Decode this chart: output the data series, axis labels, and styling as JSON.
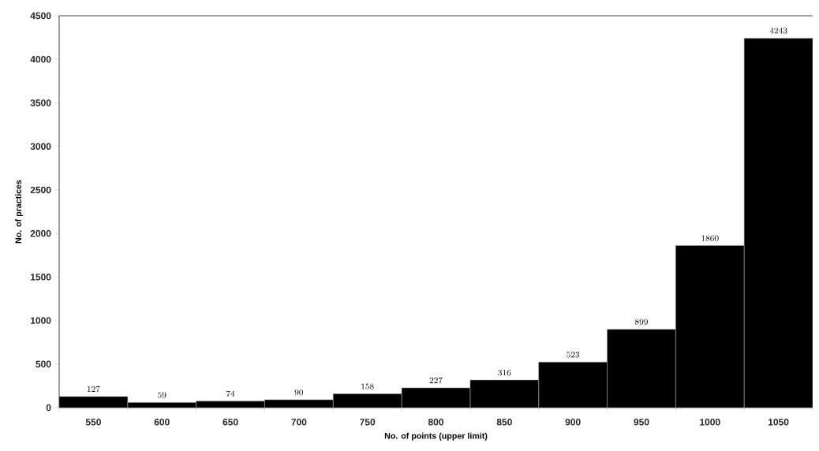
{
  "chart_data": {
    "type": "bar",
    "xlabel": "No. of points (upper limit)",
    "ylabel": "No. of practices",
    "categories": [
      "550",
      "600",
      "650",
      "700",
      "750",
      "800",
      "850",
      "900",
      "950",
      "1000",
      "1050"
    ],
    "values": [
      127,
      59,
      74,
      90,
      158,
      227,
      316,
      523,
      899,
      1860,
      4243
    ],
    "color": "#000000",
    "ylim": [
      0,
      4500
    ],
    "yticks": [
      0,
      500,
      1000,
      1500,
      2000,
      2500,
      3000,
      3500,
      4000,
      4500
    ],
    "data_labels": true,
    "grid": false
  }
}
